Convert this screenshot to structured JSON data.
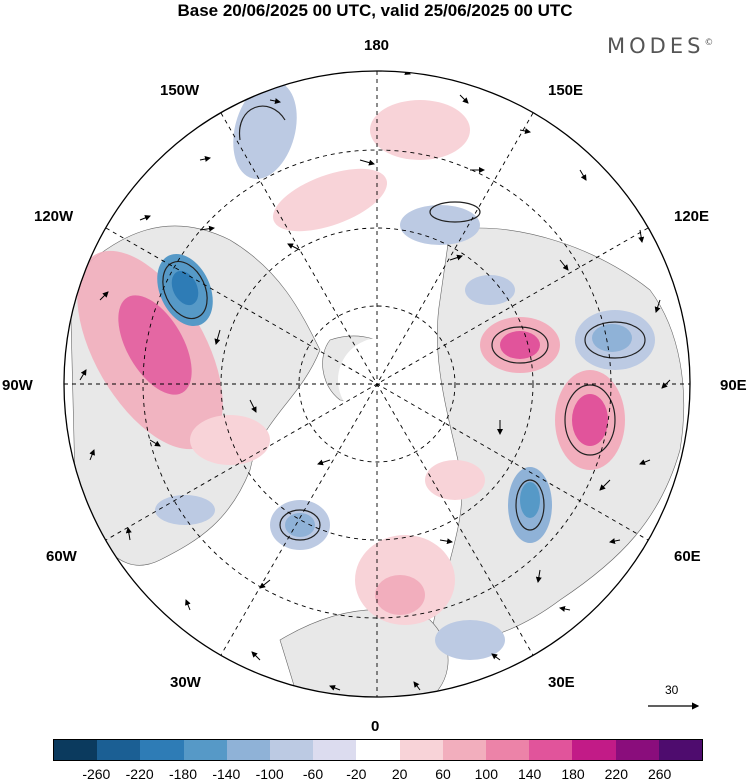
{
  "title": "Base 20/06/2025 00 UTC, valid 25/06/2025 00 UTC",
  "brand": "MODES",
  "brand_mark": "©",
  "longitude_labels": {
    "top": "180",
    "bottom": "0",
    "left": "90W",
    "right": "90E",
    "upper_left_1": "150W",
    "upper_left_2": "120W",
    "lower_left_1": "60W",
    "lower_left_2": "30W",
    "upper_right_1": "150E",
    "upper_right_2": "120E",
    "lower_right_1": "60E",
    "lower_right_2": "30E"
  },
  "vector_scale_label": "30",
  "colorbar": {
    "colors": [
      "#0b3a5e",
      "#1b5f94",
      "#2e7cb6",
      "#5699c7",
      "#8fb2d7",
      "#bccae3",
      "#dcdcef",
      "#ffffff",
      "#f8d3d8",
      "#f2aebd",
      "#ec83a8",
      "#e1549b",
      "#c21b87",
      "#8a0d7c",
      "#4e0c6e"
    ],
    "tick_labels": [
      "-260",
      "-220",
      "-180",
      "-140",
      "-100",
      "-60",
      "-20",
      "20",
      "60",
      "100",
      "140",
      "180",
      "220",
      "260"
    ]
  }
}
